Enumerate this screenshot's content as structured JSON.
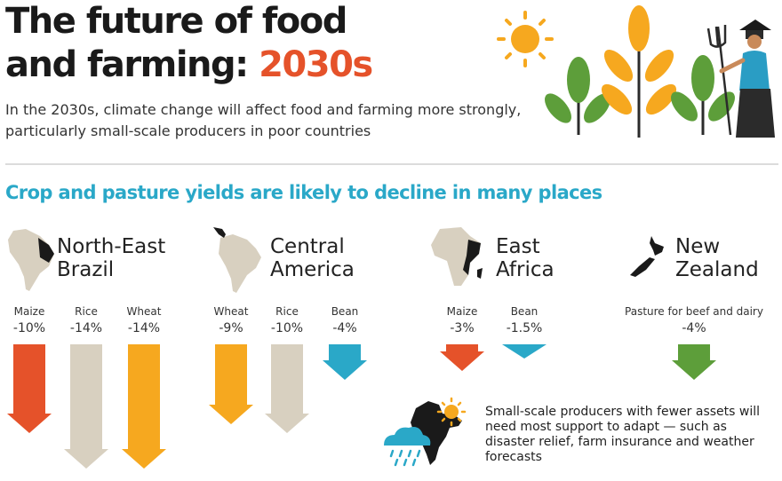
{
  "header": {
    "title_line1": "The future of food",
    "title_line2_prefix": "and farming: ",
    "title_line2_highlight": "2030s",
    "subtitle": "In the 2030s, climate change will  affect food and farming more strongly, particularly small-scale producers in poor countries"
  },
  "section_heading": "Crop and pasture yields are likely to decline in many places",
  "colors": {
    "orange_red": "#e5522a",
    "beige": "#d8d0c0",
    "yellow": "#f6a81f",
    "blue": "#2aa8c8",
    "green": "#5d9e3a",
    "dark": "#1a1a1a"
  },
  "regions": [
    {
      "line1": "North-East",
      "line2": "Brazil",
      "icon": "south-america-map-icon"
    },
    {
      "line1": "Central",
      "line2": "America",
      "icon": "south-america-map-icon"
    },
    {
      "line1": "East",
      "line2": "Africa",
      "icon": "africa-map-icon"
    },
    {
      "line1": "New",
      "line2": "Zealand",
      "icon": "new-zealand-map-icon"
    }
  ],
  "chart_data": {
    "type": "bar",
    "categories": [
      "Maize",
      "Rice",
      "Wheat",
      "Wheat",
      "Rice",
      "Bean",
      "Maize",
      "Bean",
      "Pasture for beef and dairy"
    ],
    "regions": [
      "North-East Brazil",
      "North-East Brazil",
      "North-East Brazil",
      "Central America",
      "Central America",
      "Central America",
      "East Africa",
      "East Africa",
      "New Zealand"
    ],
    "values": [
      -10,
      -14,
      -14,
      -9,
      -10,
      -4,
      -3,
      -1.5,
      -4
    ],
    "labels": [
      "-10%",
      "-14%",
      "-14%",
      "-9%",
      "-10%",
      "-4%",
      "-3%",
      "-1.5%",
      "-4%"
    ],
    "colors": [
      "#e5522a",
      "#d8d0c0",
      "#f6a81f",
      "#f6a81f",
      "#d8d0c0",
      "#2aa8c8",
      "#e5522a",
      "#2aa8c8",
      "#5d9e3a"
    ],
    "ylim": [
      -14,
      0
    ]
  },
  "note": {
    "text": "Small-scale producers with fewer assets will need most support to adapt — such as disaster relief, farm insurance and weather forecasts",
    "icons": [
      "india-map-icon",
      "rain-cloud-icon",
      "sun-icon"
    ]
  }
}
